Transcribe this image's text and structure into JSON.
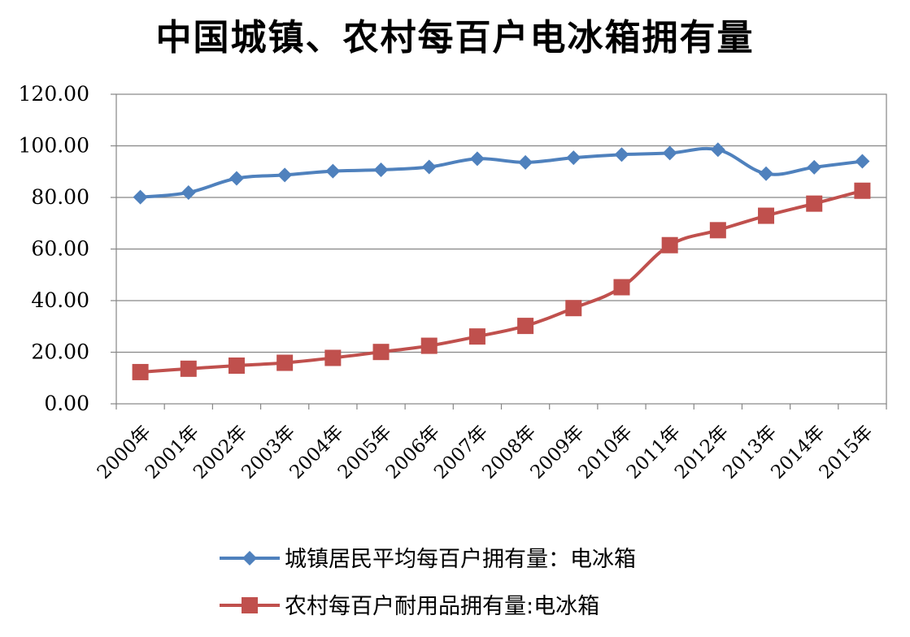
{
  "chart_data": {
    "type": "line",
    "title": "中国城镇、农村每百户电冰箱拥有量",
    "categories": [
      "2000年",
      "2001年",
      "2002年",
      "2003年",
      "2004年",
      "2005年",
      "2006年",
      "2007年",
      "2008年",
      "2009年",
      "2010年",
      "2011年",
      "2012年",
      "2013年",
      "2014年",
      "2015年"
    ],
    "series": [
      {
        "name": "城镇居民平均每百户拥有量：电冰箱",
        "color": "#4F81BD",
        "marker": "diamond",
        "values": [
          80.1,
          81.9,
          87.4,
          88.7,
          90.2,
          90.7,
          91.8,
          95.0,
          93.6,
          95.4,
          96.6,
          97.2,
          98.5,
          89.2,
          91.7,
          94.0
        ]
      },
      {
        "name": "农村每百户耐用品拥有量:电冰箱",
        "color": "#C0504D",
        "marker": "square",
        "values": [
          12.3,
          13.6,
          14.8,
          15.9,
          17.8,
          20.1,
          22.5,
          26.1,
          30.2,
          37.1,
          45.2,
          61.5,
          67.3,
          72.9,
          77.6,
          82.6
        ]
      }
    ],
    "yticks": [
      "0.00",
      "20.00",
      "40.00",
      "60.00",
      "80.00",
      "100.00",
      "120.00"
    ],
    "ylim": [
      0,
      120
    ],
    "grid": true,
    "legend": "bottom",
    "xlabel": "",
    "ylabel": ""
  }
}
